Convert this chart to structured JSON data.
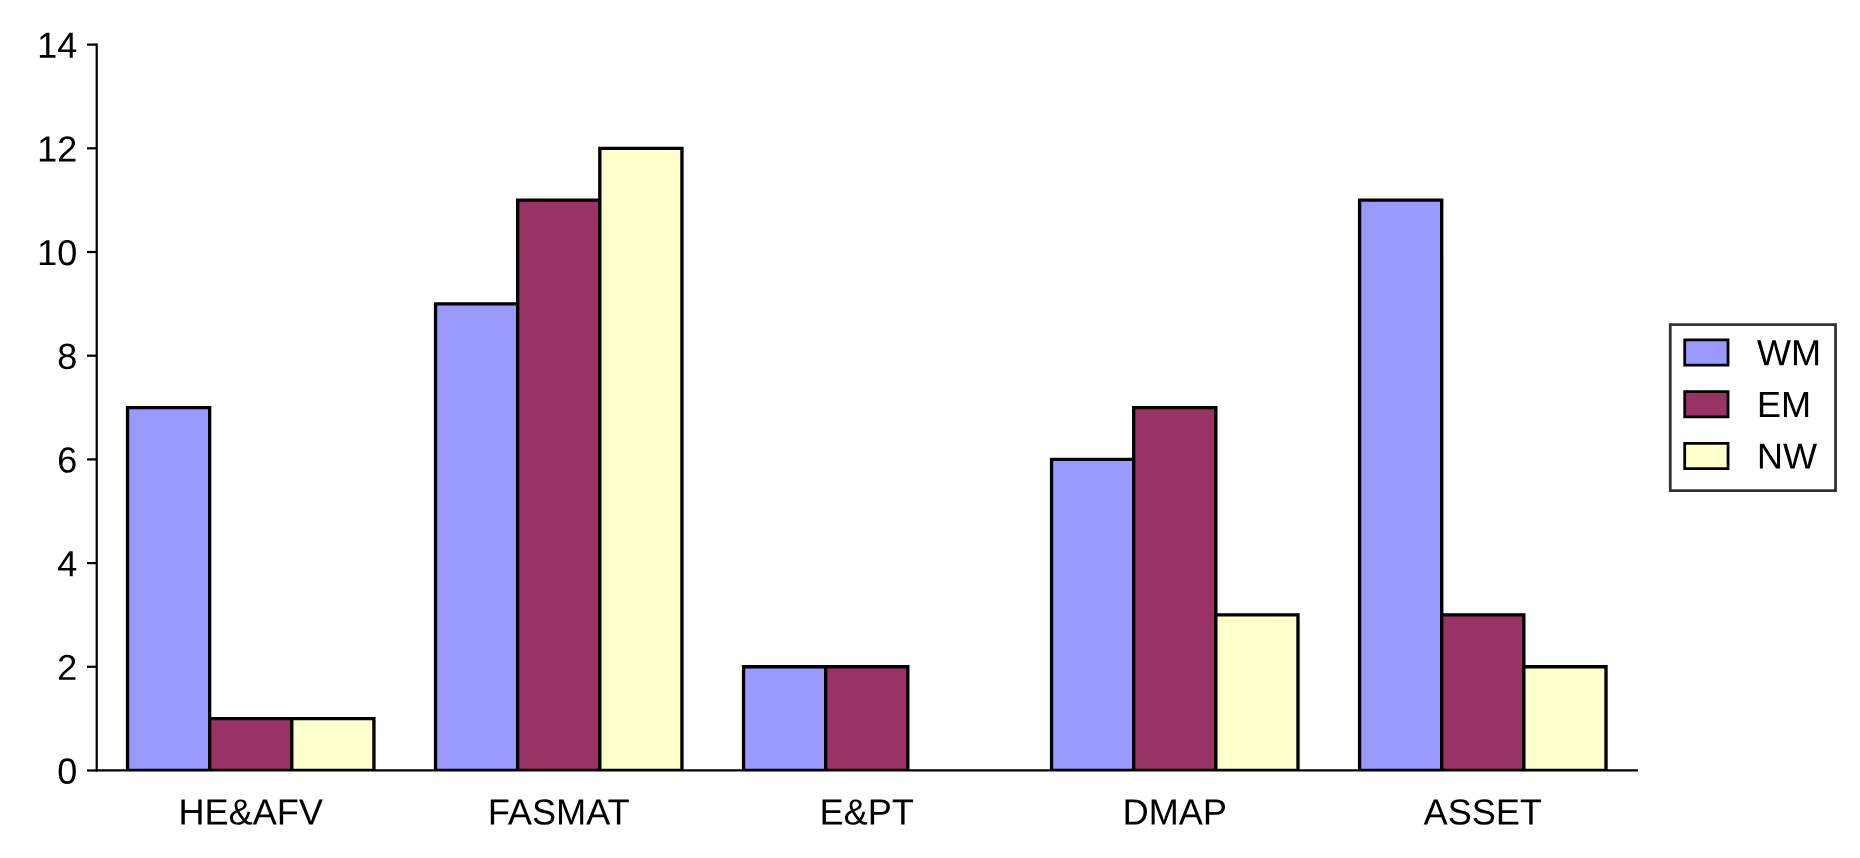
{
  "chart_data": {
    "type": "bar",
    "categories": [
      "HE&AFV",
      "FASMAT",
      "E&PT",
      "DMAP",
      "ASSET"
    ],
    "series": [
      {
        "name": "WM",
        "color": "#9999ff",
        "values": [
          7,
          9,
          2,
          6,
          11
        ]
      },
      {
        "name": "EM",
        "color": "#993366",
        "values": [
          1,
          11,
          2,
          7,
          3
        ]
      },
      {
        "name": "NW",
        "color": "#ffffcc",
        "values": [
          1,
          12,
          null,
          3,
          2
        ]
      }
    ],
    "ylim": [
      0,
      14
    ],
    "yticks": [
      0,
      2,
      4,
      6,
      8,
      10,
      12,
      14
    ],
    "grid": false,
    "legend": "right"
  }
}
